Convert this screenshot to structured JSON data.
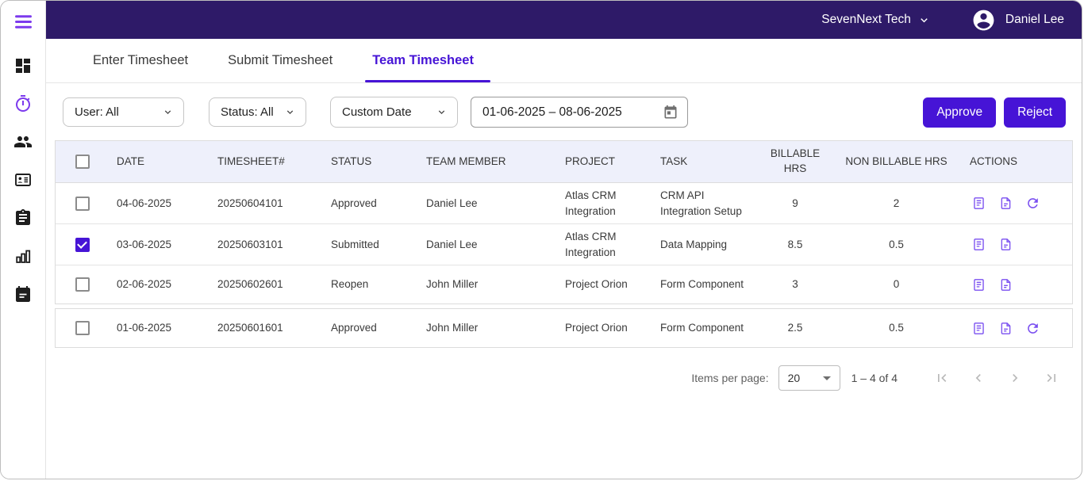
{
  "topbar": {
    "company": "SevenNext Tech",
    "user_name": "Daniel Lee"
  },
  "tabs": [
    {
      "label": "Enter Timesheet",
      "active": false
    },
    {
      "label": "Submit Timesheet",
      "active": false
    },
    {
      "label": "Team Timesheet",
      "active": true
    }
  ],
  "filters": {
    "user": {
      "label": "User: All"
    },
    "status": {
      "label": "Status: All"
    },
    "date_mode": {
      "label": "Custom Date"
    },
    "date_range": {
      "value": "01-06-2025 – 08-06-2025"
    }
  },
  "buttons": {
    "approve": "Approve",
    "reject": "Reject"
  },
  "table": {
    "headers": [
      "DATE",
      "TIMESHEET#",
      "STATUS",
      "TEAM MEMBER",
      "PROJECT",
      "TASK",
      "BILLABLE HRS",
      "NON BILLABLE HRS",
      "ACTIONS"
    ],
    "rows": [
      {
        "checked": false,
        "date": "04-06-2025",
        "timesheet": "20250604101",
        "status": "Approved",
        "member": "Daniel Lee",
        "project": "Atlas CRM Integration",
        "task": "CRM API Integration Setup",
        "billable": "9",
        "non_billable": "2",
        "actions": [
          "details",
          "document",
          "refresh"
        ]
      },
      {
        "checked": true,
        "date": "03-06-2025",
        "timesheet": "20250603101",
        "status": "Submitted",
        "member": "Daniel Lee",
        "project": "Atlas CRM Integration",
        "task": "Data Mapping",
        "billable": "8.5",
        "non_billable": "0.5",
        "actions": [
          "details",
          "document"
        ]
      },
      {
        "checked": false,
        "date": "02-06-2025",
        "timesheet": "20250602601",
        "status": "Reopen",
        "member": "John Miller",
        "project": "Project Orion",
        "task": "Form Component",
        "billable": "3",
        "non_billable": "0",
        "actions": [
          "details",
          "document"
        ]
      },
      {
        "checked": false,
        "date": "01-06-2025",
        "timesheet": "20250601601",
        "status": "Approved",
        "member": "John Miller",
        "project": "Project Orion",
        "task": "Form Component",
        "billable": "2.5",
        "non_billable": "0.5",
        "actions": [
          "details",
          "document",
          "refresh"
        ]
      }
    ]
  },
  "pagination": {
    "items_per_page_label": "Items per page:",
    "items_per_page": "20",
    "range_label": "1 – 4 of 4"
  },
  "colors": {
    "topbar_bg": "#2e1a68",
    "primary": "#4614d6",
    "sidebar_active_icon": "#7c3aed",
    "action_icon": "#7a4ff0",
    "table_header_bg": "#eef0fb"
  }
}
